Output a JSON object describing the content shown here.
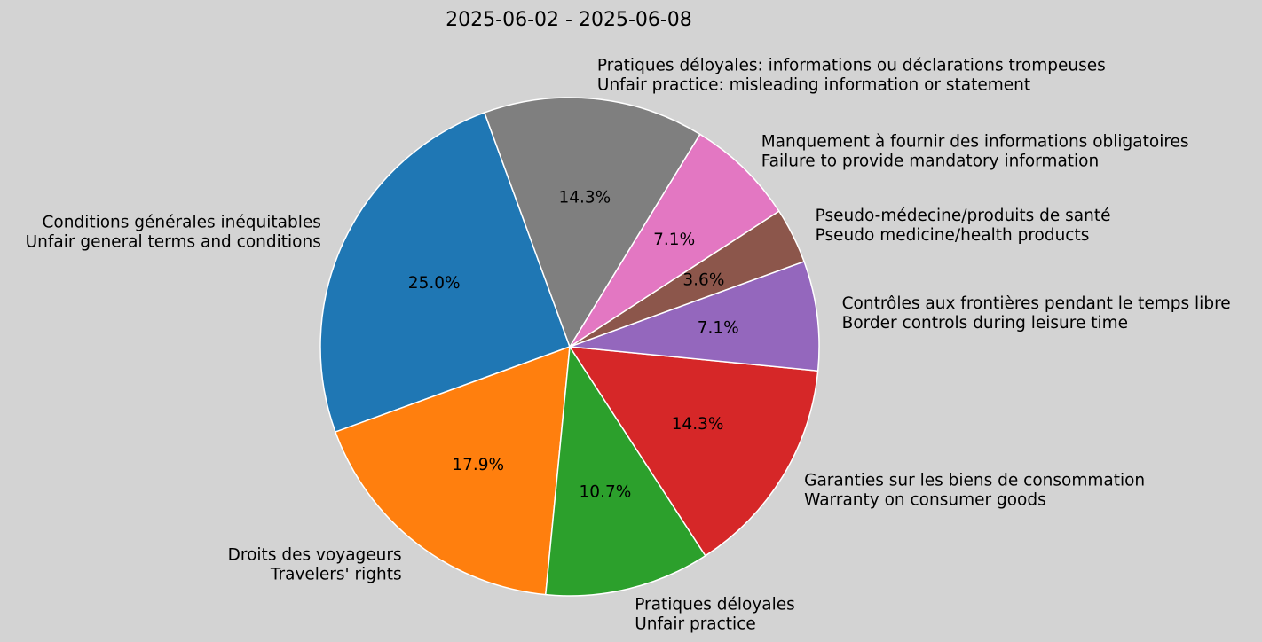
{
  "chart_data": {
    "type": "pie",
    "title": "2025-06-02 - 2025-06-08",
    "slices": [
      {
        "label_fr": "Conditions générales inéquitables",
        "label_en": "Unfair general terms and conditions",
        "value": 25.0,
        "pct_label": "25.0%",
        "color": "#1f77b4"
      },
      {
        "label_fr": "Droits des voyageurs",
        "label_en": "Travelers' rights",
        "value": 17.9,
        "pct_label": "17.9%",
        "color": "#ff7f0e"
      },
      {
        "label_fr": "Pratiques déloyales",
        "label_en": "Unfair practice",
        "value": 10.7,
        "pct_label": "10.7%",
        "color": "#2ca02c"
      },
      {
        "label_fr": "Garanties sur les biens de consommation",
        "label_en": "Warranty on consumer goods",
        "value": 14.3,
        "pct_label": "14.3%",
        "color": "#d62728"
      },
      {
        "label_fr": "Contrôles aux frontières pendant le temps libre",
        "label_en": "Border controls during leisure time",
        "value": 7.1,
        "pct_label": "7.1%",
        "color": "#9467bd"
      },
      {
        "label_fr": "Pseudo-médecine/produits de santé",
        "label_en": "Pseudo medicine/health products",
        "value": 3.6,
        "pct_label": "3.6%",
        "color": "#8c564b"
      },
      {
        "label_fr": "Manquement à fournir des informations obligatoires",
        "label_en": "Failure to provide mandatory information",
        "value": 7.1,
        "pct_label": "7.1%",
        "color": "#e377c2"
      },
      {
        "label_fr": "Pratiques déloyales: informations ou déclarations trompeuses",
        "label_en": "Unfair practice: misleading information or statement",
        "value": 14.3,
        "pct_label": "14.3%",
        "color": "#7f7f7f"
      }
    ],
    "start_angle_deg": 110,
    "direction": "counterclockwise",
    "background": "#d3d3d3"
  }
}
